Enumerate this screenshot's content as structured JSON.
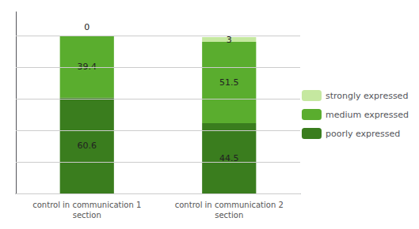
{
  "chart_data": {
    "type": "bar",
    "categories": [
      "control in communication 1\nsection",
      "control in communication 2\nsection"
    ],
    "series": [
      {
        "name": "poorly expressed",
        "color": "#3a7d1e",
        "values": [
          60.6,
          44.5
        ]
      },
      {
        "name": "medium expressed",
        "color": "#5aad2e",
        "values": [
          39.4,
          51.5
        ]
      },
      {
        "name": "strongly expressed",
        "color": "#c5e8a0",
        "values": [
          0,
          3
        ]
      }
    ],
    "stacked": true,
    "data_labels": true,
    "ylim": [
      0,
      115
    ],
    "yticks": [
      0,
      20,
      40,
      60,
      80,
      100
    ],
    "grid": true,
    "legend": "right",
    "tick_labels": "x"
  }
}
